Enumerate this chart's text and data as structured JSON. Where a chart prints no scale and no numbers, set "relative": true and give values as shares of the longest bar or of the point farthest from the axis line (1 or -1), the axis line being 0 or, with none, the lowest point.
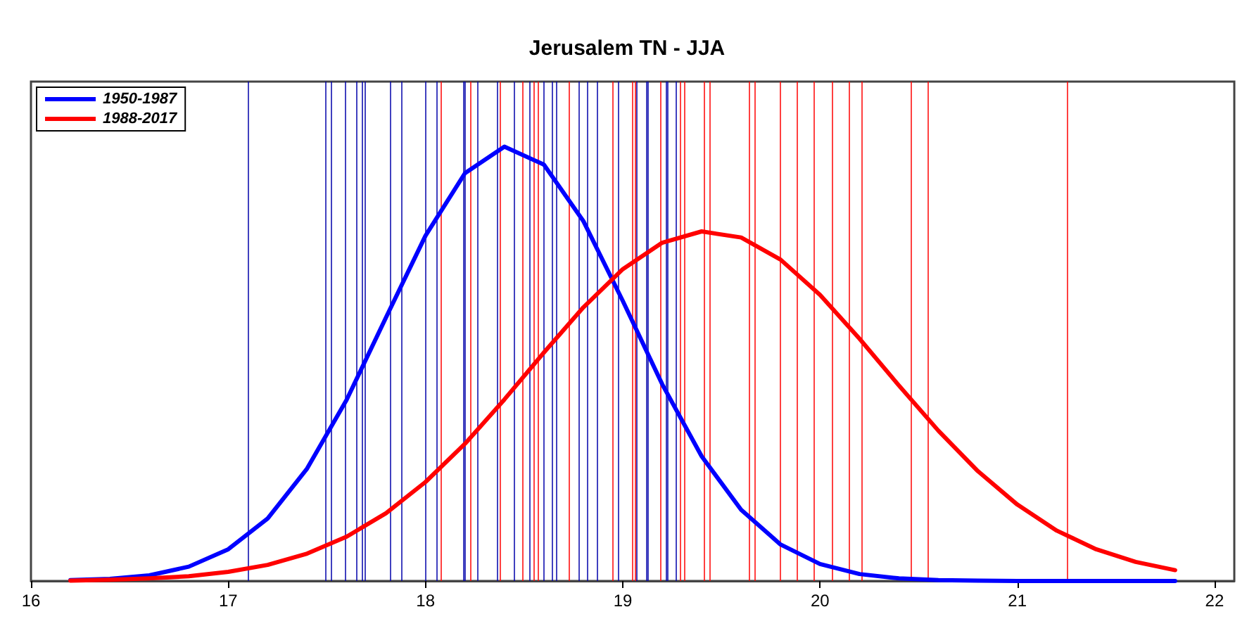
{
  "chart_data": {
    "type": "line",
    "title": "Jerusalem TN - JJA",
    "relative": true,
    "xlim": [
      16,
      22.1
    ],
    "xticks": [
      16,
      17,
      18,
      19,
      20,
      21,
      22
    ],
    "grid": false,
    "legend": "top left",
    "marker": "none",
    "line_style": "solid",
    "series": [
      {
        "name": "1950-1987",
        "color": "#0000ff",
        "x": [
          16.2,
          16.4,
          16.6,
          16.8,
          17.0,
          17.2,
          17.4,
          17.6,
          17.8,
          18.0,
          18.2,
          18.4,
          18.6,
          18.8,
          19.0,
          19.2,
          19.4,
          19.6,
          19.8,
          20.0,
          20.2,
          20.4,
          20.6,
          20.8,
          21.0,
          21.2,
          21.4,
          21.6,
          21.8
        ],
        "values": [
          0.002,
          0.005,
          0.013,
          0.033,
          0.073,
          0.144,
          0.259,
          0.417,
          0.607,
          0.795,
          0.939,
          1,
          0.959,
          0.829,
          0.645,
          0.453,
          0.287,
          0.164,
          0.084,
          0.039,
          0.016,
          0.006,
          0.002,
          0.001,
          0,
          0,
          0,
          0,
          0
        ]
      },
      {
        "name": "1988-2017",
        "color": "#ff0000",
        "x": [
          16.2,
          16.4,
          16.6,
          16.8,
          17.0,
          17.2,
          17.4,
          17.6,
          17.8,
          18.0,
          18.2,
          18.4,
          18.6,
          18.8,
          19.0,
          19.2,
          19.4,
          19.6,
          19.8,
          20.0,
          20.2,
          20.4,
          20.6,
          20.8,
          21.0,
          21.2,
          21.4,
          21.6,
          21.8
        ],
        "values": [
          0.001,
          0.003,
          0.006,
          0.011,
          0.021,
          0.037,
          0.063,
          0.102,
          0.156,
          0.228,
          0.316,
          0.418,
          0.526,
          0.63,
          0.718,
          0.779,
          0.805,
          0.791,
          0.74,
          0.659,
          0.558,
          0.45,
          0.346,
          0.253,
          0.176,
          0.116,
          0.073,
          0.044,
          0.025
        ]
      }
    ],
    "ref_lines": [
      {
        "axis": "x",
        "value": 17.1,
        "color": "#0000aa"
      },
      {
        "axis": "x",
        "value": 17.49,
        "color": "#0000aa"
      },
      {
        "axis": "x",
        "value": 17.52,
        "color": "#0000aa"
      },
      {
        "axis": "x",
        "value": 17.59,
        "color": "#0000aa"
      },
      {
        "axis": "x",
        "value": 17.65,
        "color": "#0000aa"
      },
      {
        "axis": "x",
        "value": 17.68,
        "color": "#0000aa"
      },
      {
        "axis": "x",
        "value": 17.69,
        "color": "#0000aa"
      },
      {
        "axis": "x",
        "value": 17.82,
        "color": "#0000aa"
      },
      {
        "axis": "x",
        "value": 17.88,
        "color": "#0000aa"
      },
      {
        "axis": "x",
        "value": 18.0,
        "color": "#0000aa"
      },
      {
        "axis": "x",
        "value": 18.06,
        "color": "#0000aa"
      },
      {
        "axis": "x",
        "value": 18.19,
        "color": "#0000aa"
      },
      {
        "axis": "x",
        "value": 18.2,
        "color": "#0000aa"
      },
      {
        "axis": "x",
        "value": 18.26,
        "color": "#0000aa"
      },
      {
        "axis": "x",
        "value": 18.36,
        "color": "#0000aa"
      },
      {
        "axis": "x",
        "value": 18.45,
        "color": "#0000aa"
      },
      {
        "axis": "x",
        "value": 18.53,
        "color": "#0000aa"
      },
      {
        "axis": "x",
        "value": 18.6,
        "color": "#0000aa"
      },
      {
        "axis": "x",
        "value": 18.64,
        "color": "#0000aa"
      },
      {
        "axis": "x",
        "value": 18.66,
        "color": "#0000aa"
      },
      {
        "axis": "x",
        "value": 18.78,
        "color": "#0000aa"
      },
      {
        "axis": "x",
        "value": 18.82,
        "color": "#0000aa"
      },
      {
        "axis": "x",
        "value": 18.87,
        "color": "#0000aa"
      },
      {
        "axis": "x",
        "value": 18.98,
        "color": "#0000aa"
      },
      {
        "axis": "x",
        "value": 19.07,
        "color": "#0000aa"
      },
      {
        "axis": "x",
        "value": 19.12,
        "color": "#0000aa"
      },
      {
        "axis": "x",
        "value": 19.13,
        "color": "#0000aa"
      },
      {
        "axis": "x",
        "value": 19.22,
        "color": "#0000aa"
      },
      {
        "axis": "x",
        "value": 19.23,
        "color": "#0000aa"
      },
      {
        "axis": "x",
        "value": 19.27,
        "color": "#0000aa"
      },
      {
        "axis": "x",
        "value": 18.08,
        "color": "#ff0000"
      },
      {
        "axis": "x",
        "value": 18.23,
        "color": "#ff0000"
      },
      {
        "axis": "x",
        "value": 18.38,
        "color": "#ff0000"
      },
      {
        "axis": "x",
        "value": 18.49,
        "color": "#ff0000"
      },
      {
        "axis": "x",
        "value": 18.55,
        "color": "#ff0000"
      },
      {
        "axis": "x",
        "value": 18.57,
        "color": "#ff0000"
      },
      {
        "axis": "x",
        "value": 18.73,
        "color": "#ff0000"
      },
      {
        "axis": "x",
        "value": 18.95,
        "color": "#ff0000"
      },
      {
        "axis": "x",
        "value": 19.05,
        "color": "#ff0000"
      },
      {
        "axis": "x",
        "value": 19.06,
        "color": "#ff0000"
      },
      {
        "axis": "x",
        "value": 19.19,
        "color": "#ff0000"
      },
      {
        "axis": "x",
        "value": 19.29,
        "color": "#ff0000"
      },
      {
        "axis": "x",
        "value": 19.31,
        "color": "#ff0000"
      },
      {
        "axis": "x",
        "value": 19.41,
        "color": "#ff0000"
      },
      {
        "axis": "x",
        "value": 19.44,
        "color": "#ff0000"
      },
      {
        "axis": "x",
        "value": 19.64,
        "color": "#ff0000"
      },
      {
        "axis": "x",
        "value": 19.67,
        "color": "#ff0000"
      },
      {
        "axis": "x",
        "value": 19.8,
        "color": "#ff0000"
      },
      {
        "axis": "x",
        "value": 19.88,
        "color": "#ff0000"
      },
      {
        "axis": "x",
        "value": 19.97,
        "color": "#ff0000"
      },
      {
        "axis": "x",
        "value": 20.06,
        "color": "#ff0000"
      },
      {
        "axis": "x",
        "value": 20.15,
        "color": "#ff0000"
      },
      {
        "axis": "x",
        "value": 20.21,
        "color": "#ff0000"
      },
      {
        "axis": "x",
        "value": 20.46,
        "color": "#ff0000"
      },
      {
        "axis": "x",
        "value": 20.55,
        "color": "#ff0000"
      },
      {
        "axis": "x",
        "value": 21.25,
        "color": "#ff0000"
      }
    ]
  }
}
